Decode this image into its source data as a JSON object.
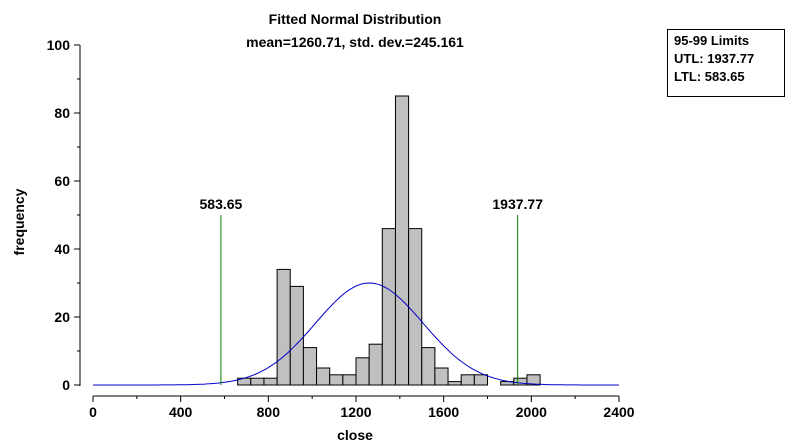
{
  "chart_data": {
    "type": "bar",
    "title": "Fitted Normal Distribution",
    "subtitle": "mean=1260.71, std. dev.=245.161",
    "xlabel": "close",
    "ylabel": "frequency",
    "xlim": [
      0,
      2400
    ],
    "ylim": [
      0,
      100
    ],
    "x_ticks": [
      0,
      400,
      800,
      1200,
      1600,
      2000,
      2400
    ],
    "y_ticks": [
      0,
      20,
      40,
      60,
      80,
      100
    ],
    "bins": {
      "edges": [
        660,
        720,
        780,
        840,
        900,
        960,
        1020,
        1080,
        1140,
        1200,
        1260,
        1320,
        1380,
        1440,
        1500,
        1560,
        1620,
        1680,
        1740,
        1800,
        1860,
        1920,
        1980
      ],
      "counts": [
        2,
        2,
        2,
        34,
        29,
        11,
        5,
        3,
        3,
        8,
        12,
        46,
        85,
        46,
        11,
        5,
        1,
        3,
        3,
        0,
        1,
        2,
        3
      ]
    },
    "fit": {
      "type": "normal",
      "mean": 1260.71,
      "std": 245.161,
      "peak": 30
    },
    "limits": [
      {
        "label": "583.65",
        "value": 583.65
      },
      {
        "label": "1937.77",
        "value": 1937.77
      }
    ],
    "colors": {
      "bar_fill": "#c0c0c0",
      "bar_stroke": "#000000",
      "curve": "#0000cc",
      "limit": "#008000"
    }
  },
  "legend": {
    "title": "95-99 Limits",
    "utl": "UTL: 1937.77",
    "ltl": "LTL: 583.65"
  }
}
